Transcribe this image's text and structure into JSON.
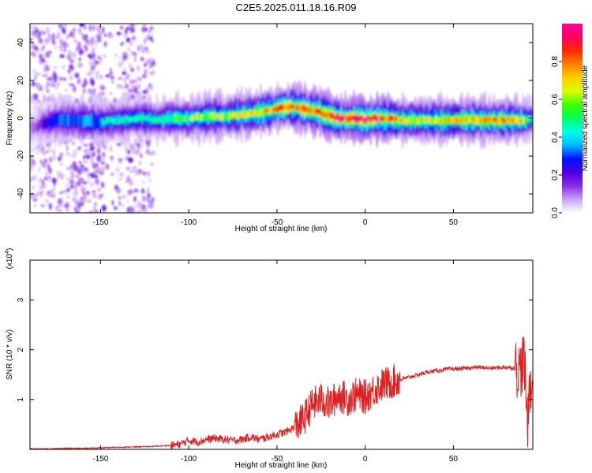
{
  "figure_title": "C2E5.2025.011.18.16.R09",
  "chart_data": [
    {
      "type": "heatmap",
      "xlabel": "Height of straight line (km)",
      "ylabel": "Frequency (Hz)",
      "xlim": [
        -190,
        95
      ],
      "ylim": [
        -50,
        50
      ],
      "xticks": [
        -150,
        -100,
        -50,
        0,
        50
      ],
      "yticks": [
        -40,
        -20,
        0,
        20,
        40
      ],
      "colorbar": {
        "label": "Normalized spectral amplitude",
        "range": [
          0,
          1
        ],
        "ticks": [
          0.0,
          0.2,
          0.4,
          0.6,
          0.8
        ],
        "colors": [
          "#ffffff",
          "#c7a3f5",
          "#8a2be2",
          "#4b00e0",
          "#0010ff",
          "#00b8ff",
          "#00ffee",
          "#00ff60",
          "#40ff00",
          "#d8ff00",
          "#ffd000",
          "#ff8000",
          "#ff2a00",
          "#ff0060",
          "#ff0098"
        ]
      },
      "ridge": {
        "x": [
          -190,
          -175,
          -160,
          -150,
          -140,
          -130,
          -120,
          -110,
          -100,
          -90,
          -80,
          -70,
          -60,
          -50,
          -45,
          -40,
          -35,
          -30,
          -25,
          -20,
          -15,
          -10,
          -5,
          0,
          5,
          10,
          20,
          30,
          40,
          50,
          60,
          70,
          80,
          88,
          92,
          95
        ],
        "freq": [
          -5,
          -1,
          -1,
          -2,
          -1,
          0,
          -1,
          0,
          0,
          1,
          1,
          2,
          3,
          5,
          6,
          6,
          5,
          4,
          3,
          1,
          0,
          0,
          0,
          -1,
          0,
          0,
          -1,
          -1,
          -1,
          -1,
          -1,
          -1,
          -1,
          -1,
          -1,
          0
        ],
        "amplitude": [
          0.1,
          0.4,
          0.45,
          0.45,
          0.45,
          0.45,
          0.45,
          0.5,
          0.55,
          0.6,
          0.6,
          0.65,
          0.7,
          0.75,
          0.8,
          0.8,
          0.85,
          0.85,
          0.85,
          0.85,
          0.9,
          0.9,
          0.95,
          0.95,
          0.9,
          0.85,
          0.7,
          0.65,
          0.65,
          0.7,
          0.75,
          0.75,
          0.75,
          0.7,
          0.5,
          0.4
        ]
      },
      "noise_region_x": [
        -190,
        -120
      ]
    },
    {
      "type": "line",
      "xlabel": "Height of straight line (km)",
      "ylabel": "SNR (10 * v/v)",
      "y_multiplier": "(x10",
      "y_multiplier_exp": "4",
      "y_multiplier_close": ")",
      "xlim": [
        -190,
        95
      ],
      "ylim": [
        0,
        3.8
      ],
      "xticks": [
        -150,
        -100,
        -50,
        0,
        50
      ],
      "yticks": [
        1,
        2,
        3
      ],
      "line_color": "#ff0000",
      "series": [
        {
          "x": [
            -190,
            -180,
            -170,
            -160,
            -150,
            -140,
            -130,
            -120,
            -110,
            -105,
            -100,
            -95,
            -90,
            -85,
            -80,
            -75,
            -70,
            -65,
            -60,
            -55,
            -50,
            -45,
            -40,
            -35,
            -30,
            -25,
            -20,
            -15,
            -10,
            -5,
            0,
            5,
            10,
            15,
            20,
            25,
            30,
            35,
            40,
            45,
            50,
            55,
            60,
            65,
            70,
            75,
            80,
            85,
            88,
            90,
            91,
            92,
            93,
            94,
            95
          ],
          "y": [
            0.01,
            0.01,
            0.02,
            0.02,
            0.03,
            0.04,
            0.05,
            0.06,
            0.08,
            0.1,
            0.18,
            0.15,
            0.2,
            0.22,
            0.2,
            0.18,
            0.2,
            0.25,
            0.2,
            0.25,
            0.3,
            0.35,
            0.45,
            0.6,
            0.9,
            1.0,
            0.9,
            1.1,
            1.0,
            1.1,
            1.05,
            1.2,
            1.3,
            1.35,
            1.4,
            1.45,
            1.5,
            1.55,
            1.58,
            1.6,
            1.62,
            1.62,
            1.64,
            1.65,
            1.63,
            1.64,
            1.65,
            1.63,
            1.6,
            1.8,
            1.2,
            0.4,
            1.5,
            1.0,
            1.6
          ]
        }
      ]
    }
  ]
}
